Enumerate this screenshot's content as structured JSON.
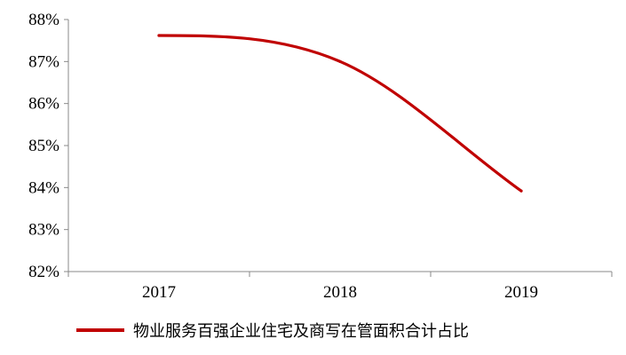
{
  "chart_data": {
    "type": "line",
    "categories": [
      "2017",
      "2018",
      "2019"
    ],
    "series": [
      {
        "name": "物业服务百强企业住宅及商写在管面积合计占比",
        "values": [
          87.62,
          87.0,
          83.92
        ],
        "color": "#C00000"
      }
    ],
    "y_tick_labels": [
      "82%",
      "83%",
      "84%",
      "85%",
      "86%",
      "87%",
      "88%"
    ],
    "ylim": [
      82,
      88
    ],
    "y_unit": "%",
    "grid": false,
    "legend_position": "bottom",
    "smooth": true
  }
}
